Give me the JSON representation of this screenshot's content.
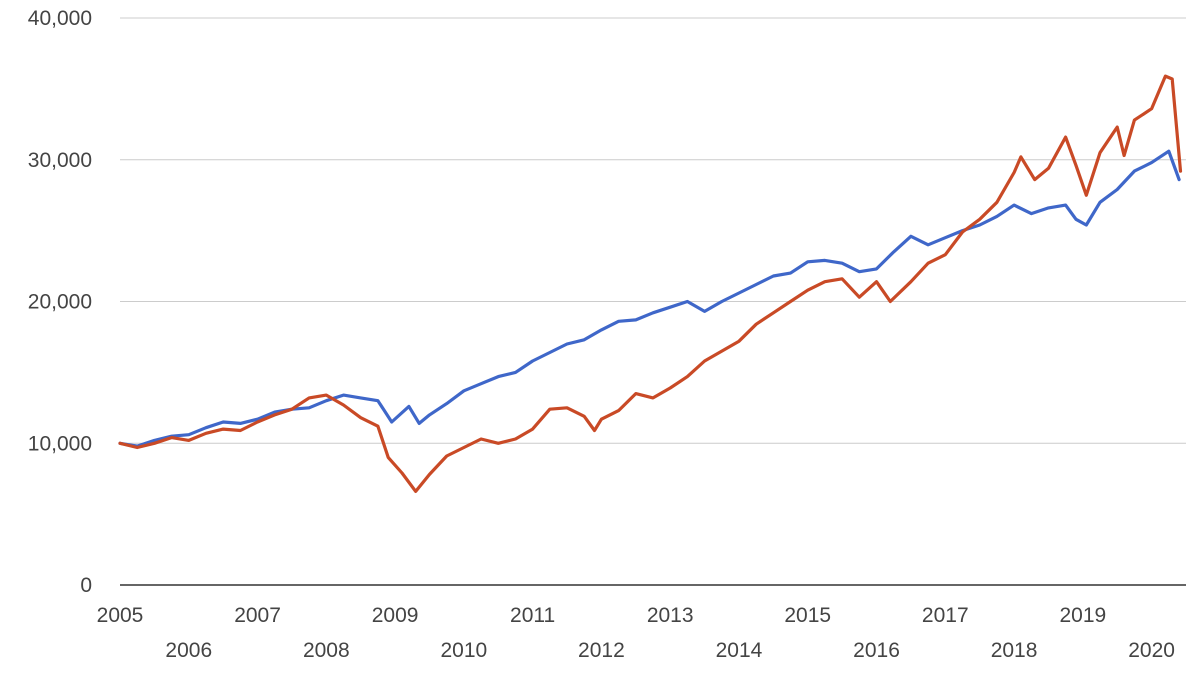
{
  "chart_data": {
    "type": "line",
    "title": "",
    "xlabel": "",
    "ylabel": "",
    "xlim": [
      2005,
      2020.5
    ],
    "ylim": [
      0,
      40000
    ],
    "grid": true,
    "y_ticks": [
      0,
      10000,
      20000,
      30000,
      40000
    ],
    "y_tick_labels": [
      "0",
      "10,000",
      "20,000",
      "30,000",
      "40,000"
    ],
    "x_ticks": [
      2005,
      2006,
      2007,
      2008,
      2009,
      2010,
      2011,
      2012,
      2013,
      2014,
      2015,
      2016,
      2017,
      2018,
      2019,
      2020
    ],
    "x_tick_labels": [
      "2005",
      "2006",
      "2007",
      "2008",
      "2009",
      "2010",
      "2011",
      "2012",
      "2013",
      "2014",
      "2015",
      "2016",
      "2017",
      "2018",
      "2019",
      "2020"
    ],
    "series": [
      {
        "color": "#3f67c9",
        "points": [
          [
            2005.0,
            10000
          ],
          [
            2005.25,
            9800
          ],
          [
            2005.5,
            10200
          ],
          [
            2005.75,
            10500
          ],
          [
            2006.0,
            10600
          ],
          [
            2006.25,
            11100
          ],
          [
            2006.5,
            11500
          ],
          [
            2006.75,
            11400
          ],
          [
            2007.0,
            11700
          ],
          [
            2007.25,
            12200
          ],
          [
            2007.5,
            12400
          ],
          [
            2007.75,
            12500
          ],
          [
            2008.0,
            13000
          ],
          [
            2008.25,
            13400
          ],
          [
            2008.5,
            13200
          ],
          [
            2008.75,
            13000
          ],
          [
            2008.95,
            11500
          ],
          [
            2009.2,
            12600
          ],
          [
            2009.35,
            11400
          ],
          [
            2009.5,
            12000
          ],
          [
            2009.75,
            12800
          ],
          [
            2010.0,
            13700
          ],
          [
            2010.25,
            14200
          ],
          [
            2010.5,
            14700
          ],
          [
            2010.75,
            15000
          ],
          [
            2011.0,
            15800
          ],
          [
            2011.25,
            16400
          ],
          [
            2011.5,
            17000
          ],
          [
            2011.75,
            17300
          ],
          [
            2012.0,
            18000
          ],
          [
            2012.25,
            18600
          ],
          [
            2012.5,
            18700
          ],
          [
            2012.75,
            19200
          ],
          [
            2013.0,
            19600
          ],
          [
            2013.25,
            20000
          ],
          [
            2013.5,
            19300
          ],
          [
            2013.75,
            20000
          ],
          [
            2014.0,
            20600
          ],
          [
            2014.25,
            21200
          ],
          [
            2014.5,
            21800
          ],
          [
            2014.75,
            22000
          ],
          [
            2015.0,
            22800
          ],
          [
            2015.25,
            22900
          ],
          [
            2015.5,
            22700
          ],
          [
            2015.75,
            22100
          ],
          [
            2016.0,
            22300
          ],
          [
            2016.25,
            23500
          ],
          [
            2016.5,
            24600
          ],
          [
            2016.75,
            24000
          ],
          [
            2017.0,
            24500
          ],
          [
            2017.25,
            25000
          ],
          [
            2017.5,
            25400
          ],
          [
            2017.75,
            26000
          ],
          [
            2018.0,
            26800
          ],
          [
            2018.25,
            26200
          ],
          [
            2018.5,
            26600
          ],
          [
            2018.75,
            26800
          ],
          [
            2018.9,
            25800
          ],
          [
            2019.05,
            25400
          ],
          [
            2019.25,
            27000
          ],
          [
            2019.5,
            27900
          ],
          [
            2019.75,
            29200
          ],
          [
            2020.0,
            29800
          ],
          [
            2020.25,
            30600
          ],
          [
            2020.4,
            28600
          ]
        ]
      },
      {
        "color": "#c94a26",
        "points": [
          [
            2005.0,
            10000
          ],
          [
            2005.25,
            9700
          ],
          [
            2005.5,
            10000
          ],
          [
            2005.75,
            10400
          ],
          [
            2006.0,
            10200
          ],
          [
            2006.25,
            10700
          ],
          [
            2006.5,
            11000
          ],
          [
            2006.75,
            10900
          ],
          [
            2007.0,
            11500
          ],
          [
            2007.25,
            12000
          ],
          [
            2007.5,
            12400
          ],
          [
            2007.75,
            13200
          ],
          [
            2008.0,
            13400
          ],
          [
            2008.25,
            12700
          ],
          [
            2008.5,
            11800
          ],
          [
            2008.75,
            11200
          ],
          [
            2008.9,
            9000
          ],
          [
            2009.1,
            7900
          ],
          [
            2009.3,
            6600
          ],
          [
            2009.5,
            7800
          ],
          [
            2009.75,
            9100
          ],
          [
            2010.0,
            9700
          ],
          [
            2010.25,
            10300
          ],
          [
            2010.5,
            10000
          ],
          [
            2010.75,
            10300
          ],
          [
            2011.0,
            11000
          ],
          [
            2011.25,
            12400
          ],
          [
            2011.5,
            12500
          ],
          [
            2011.75,
            11900
          ],
          [
            2011.9,
            10900
          ],
          [
            2012.0,
            11700
          ],
          [
            2012.25,
            12300
          ],
          [
            2012.5,
            13500
          ],
          [
            2012.75,
            13200
          ],
          [
            2013.0,
            13900
          ],
          [
            2013.25,
            14700
          ],
          [
            2013.5,
            15800
          ],
          [
            2013.75,
            16500
          ],
          [
            2014.0,
            17200
          ],
          [
            2014.25,
            18400
          ],
          [
            2014.5,
            19200
          ],
          [
            2014.75,
            20000
          ],
          [
            2015.0,
            20800
          ],
          [
            2015.25,
            21400
          ],
          [
            2015.5,
            21600
          ],
          [
            2015.75,
            20300
          ],
          [
            2016.0,
            21400
          ],
          [
            2016.2,
            20000
          ],
          [
            2016.5,
            21400
          ],
          [
            2016.75,
            22700
          ],
          [
            2017.0,
            23300
          ],
          [
            2017.25,
            24900
          ],
          [
            2017.5,
            25800
          ],
          [
            2017.75,
            27000
          ],
          [
            2018.0,
            29100
          ],
          [
            2018.1,
            30200
          ],
          [
            2018.3,
            28600
          ],
          [
            2018.5,
            29400
          ],
          [
            2018.75,
            31600
          ],
          [
            2018.9,
            29600
          ],
          [
            2019.05,
            27500
          ],
          [
            2019.25,
            30500
          ],
          [
            2019.5,
            32300
          ],
          [
            2019.6,
            30300
          ],
          [
            2019.75,
            32800
          ],
          [
            2020.0,
            33600
          ],
          [
            2020.2,
            35900
          ],
          [
            2020.3,
            35700
          ],
          [
            2020.42,
            29200
          ]
        ]
      }
    ]
  }
}
